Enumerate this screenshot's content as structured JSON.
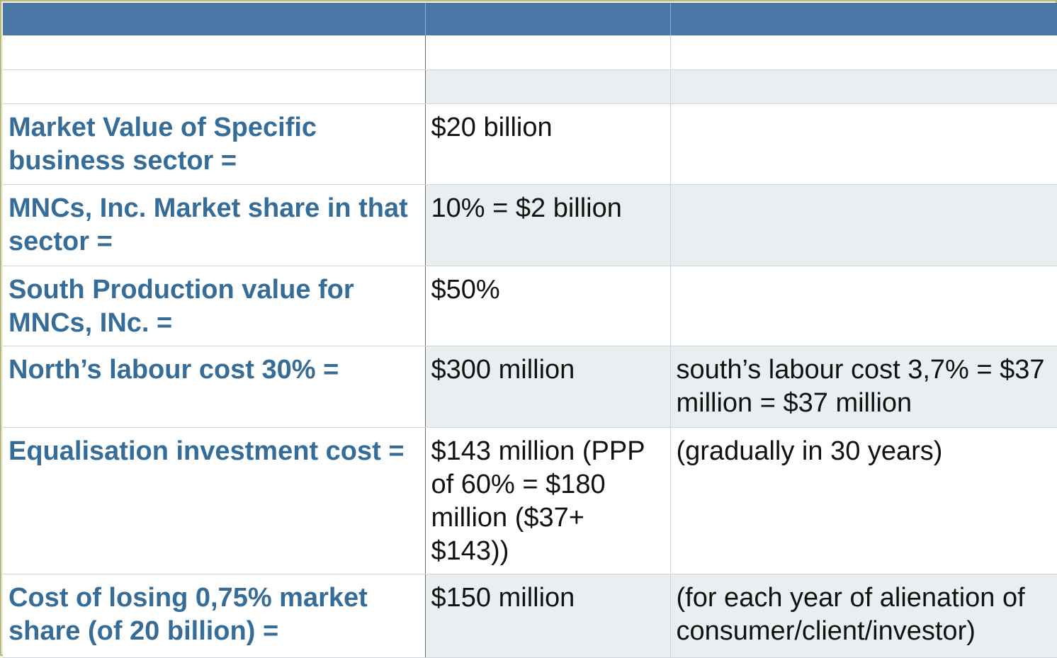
{
  "table": {
    "header": [
      "",
      "",
      ""
    ],
    "rows": [
      {
        "label": "",
        "value": "",
        "note": ""
      },
      {
        "label": "",
        "value": "",
        "note": ""
      },
      {
        "label": "Market Value of Specific business sector =",
        "value": "$20 billion",
        "note": ""
      },
      {
        "label": "MNCs, Inc. Market share in that sector =",
        "value": "10% = $2 billion",
        "note": ""
      },
      {
        "label": "South Production value for MNCs, INc. =",
        "value": "$50%",
        "note": ""
      },
      {
        "label": "North’s labour cost 30% =",
        "value": "$300 million",
        "note": "south’s labour cost 3,7% = $37 million = $37 million"
      },
      {
        "label": "Equalisation investment cost =",
        "value": "$143 million (PPP of 60% = $180 million ($37+ $143))",
        "note": "(gradually in 30 years)"
      },
      {
        "label": "Cost of losing 0,75% market share (of 20 billion)  =",
        "value": "$150 million",
        "note": "(for each year of alienation of consumer/client/investor)"
      }
    ]
  },
  "colors": {
    "header": "#4a77a5",
    "label_text": "#356d98",
    "shade": "#e9eef1",
    "page_border": "#f2f1d9"
  }
}
